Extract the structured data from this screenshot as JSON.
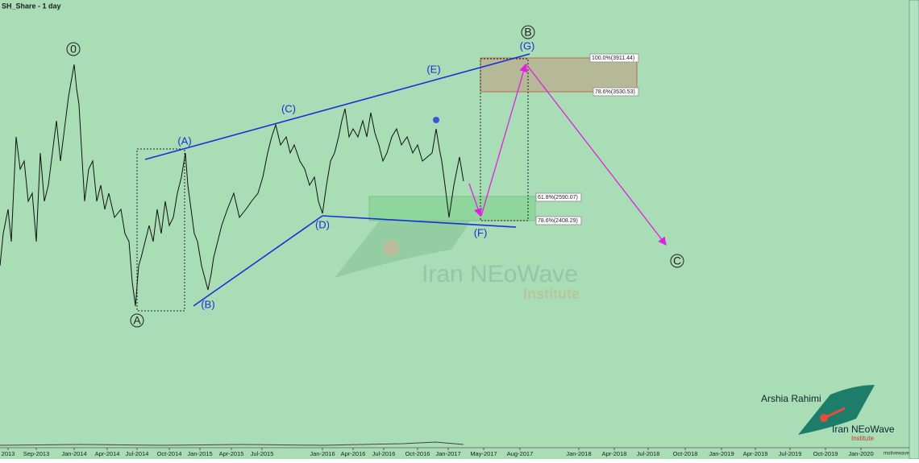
{
  "header": {
    "title": "SH_Share - 1 day"
  },
  "x_axis": {
    "labels": [
      "2013",
      "Sep-2013",
      "Jan-2014",
      "Apr-2014",
      "Jul-2014",
      "Oct-2014",
      "Jan-2015",
      "Apr-2015",
      "Jul-2015",
      "Jan-2016",
      "Apr-2016",
      "Jul-2016",
      "Oct-2016",
      "Jan-2017",
      "May-2017",
      "Aug-2017",
      "Jan-2018",
      "Apr-2018",
      "Jul-2018",
      "Oct-2018",
      "Jan-2019",
      "Apr-2019",
      "Jul-2019",
      "Oct-2019",
      "Jan-2020"
    ]
  },
  "waves": {
    "circled": [
      "0",
      "A",
      "B",
      "C"
    ],
    "blue": [
      "(A)",
      "(B)",
      "(C)",
      "(D)",
      "(E)",
      "(F)",
      "(G)"
    ]
  },
  "fib_levels": [
    "100.0%(3911.44)",
    "78.6%(3530.53)",
    "61.8%(2590.07)",
    "78.6%(2408.29)"
  ],
  "watermark": {
    "name": "Iran NEoWave",
    "sub": "Institute"
  },
  "signature": {
    "author": "Arshia Rahimi",
    "name": "Iran NEoWave",
    "sub": "Institute"
  },
  "footer": {
    "vendor": "motivewave"
  }
}
